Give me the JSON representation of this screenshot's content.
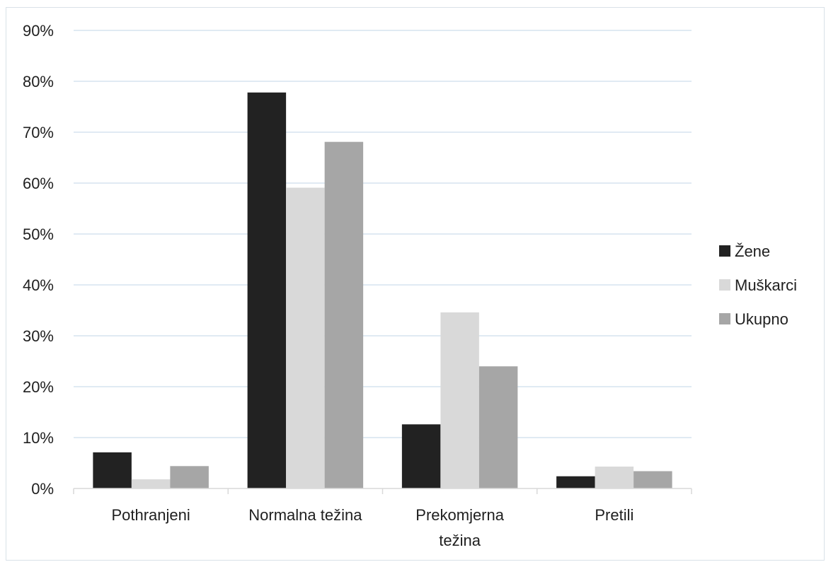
{
  "chart_data": {
    "type": "bar",
    "categories": [
      "Pothranjeni",
      "Normalna težina",
      "Prekomjerna težina",
      "Pretili"
    ],
    "category_lines": [
      [
        "Pothranjeni"
      ],
      [
        "Normalna težina"
      ],
      [
        "Prekomjerna",
        "težina"
      ],
      [
        "Pretili"
      ]
    ],
    "series": [
      {
        "name": "Žene",
        "values": [
          7.1,
          77.8,
          12.6,
          2.4
        ],
        "color": "#222222"
      },
      {
        "name": "Muškarci",
        "values": [
          1.8,
          59.1,
          34.6,
          4.3
        ],
        "color": "#d9d9d9"
      },
      {
        "name": "Ukupno",
        "values": [
          4.4,
          68.1,
          24.0,
          3.4
        ],
        "color": "#a6a6a6"
      }
    ],
    "y_ticks": [
      "0%",
      "10%",
      "20%",
      "30%",
      "40%",
      "50%",
      "60%",
      "70%",
      "80%",
      "90%"
    ],
    "ylim": [
      0,
      90
    ],
    "y_unit": "%",
    "grid": true,
    "legend_position": "right",
    "gridline_color": "#d6e4ef",
    "axis_color": "#d9d9d9"
  }
}
